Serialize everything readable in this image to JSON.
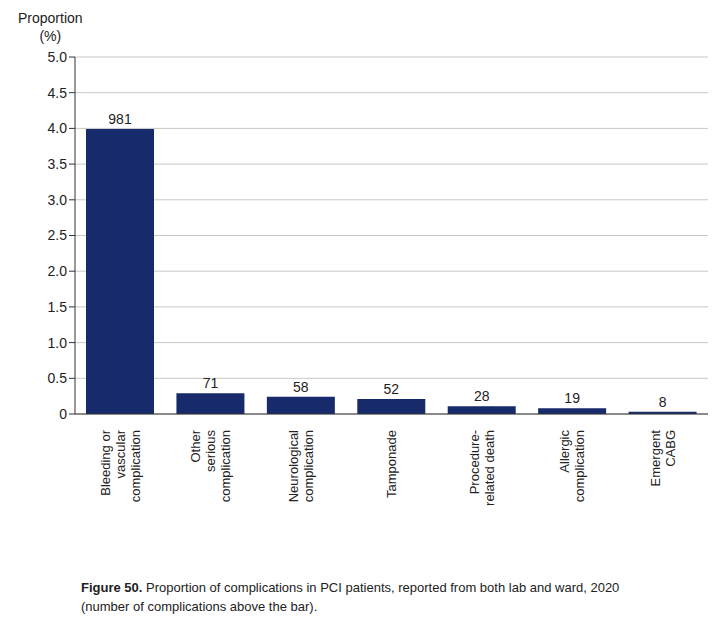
{
  "chart_data": {
    "type": "bar",
    "title": "Figure 50. Proportion of complications in PCI patients, reported from both lab and ward, 2020 (number of complications above the bar).",
    "y_label": "Proportion (%)",
    "categories": [
      "Bleeding or\nvascular\ncomplication",
      "Other\nserious\ncomplication",
      "Neurological\ncomplication",
      "Tamponade",
      "Procedure-\nrelated death",
      "Allergic\ncomplication",
      "Emergent\nCABG"
    ],
    "values": [
      3.99,
      0.29,
      0.24,
      0.21,
      0.11,
      0.08,
      0.03
    ],
    "counts": [
      981,
      71,
      58,
      52,
      28,
      19,
      8
    ],
    "color": "#172a6b",
    "ylim": [
      0,
      5
    ],
    "yticks": [
      0,
      0.5,
      {
        "value": 1,
        "label": "1.0"
      },
      1.5,
      {
        "value": 2,
        "label": "2.0"
      },
      2.5,
      {
        "value": 3,
        "label": "3.0"
      },
      3.5,
      {
        "value": 4,
        "label": "4.0"
      },
      4.5,
      {
        "value": 5,
        "label": "5.0"
      }
    ],
    "grid": true
  }
}
